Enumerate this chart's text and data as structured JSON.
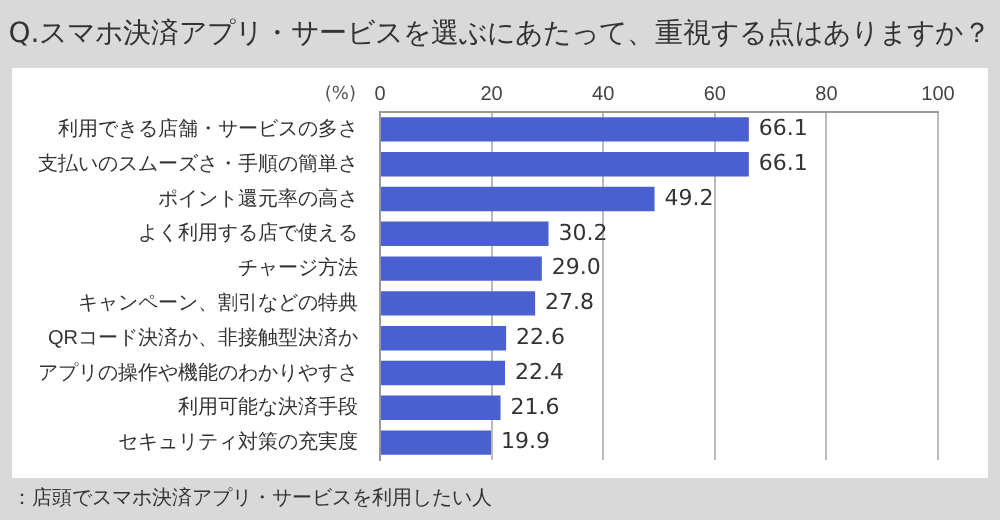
{
  "chart_data": {
    "type": "bar",
    "orientation": "horizontal",
    "title": "Q.スマホ決済アプリ・サービスを選ぶにあたって、重視する点はありますか？",
    "xlabel": "(%)",
    "categories": [
      "利用できる店舗・サービスの多さ",
      "支払いのスムーズさ・手順の簡単さ",
      "ポイント還元率の高さ",
      "よく利用する店で使える",
      "チャージ方法",
      "キャンペーン、割引などの特典",
      "QRコード決済か、非接触型決済か",
      "アプリの操作や機能のわかりやすさ",
      "利用可能な決済手段",
      "セキュリティ対策の充実度"
    ],
    "values": [
      66.1,
      66.1,
      49.2,
      30.2,
      29.0,
      27.8,
      22.6,
      22.4,
      21.6,
      19.9
    ],
    "value_labels": [
      "66.1",
      "66.1",
      "49.2",
      "30.2",
      "29.0",
      "27.8",
      "22.6",
      "22.4",
      "21.6",
      "19.9"
    ],
    "color": "#4a5fd0",
    "xlim": [
      0,
      100
    ],
    "xticks": [
      0,
      20,
      40,
      60,
      80,
      100
    ],
    "grid": "x",
    "legend": false,
    "annotations": [
      "：店頭でスマホ決済アプリ・サービスを利用したい人"
    ]
  }
}
